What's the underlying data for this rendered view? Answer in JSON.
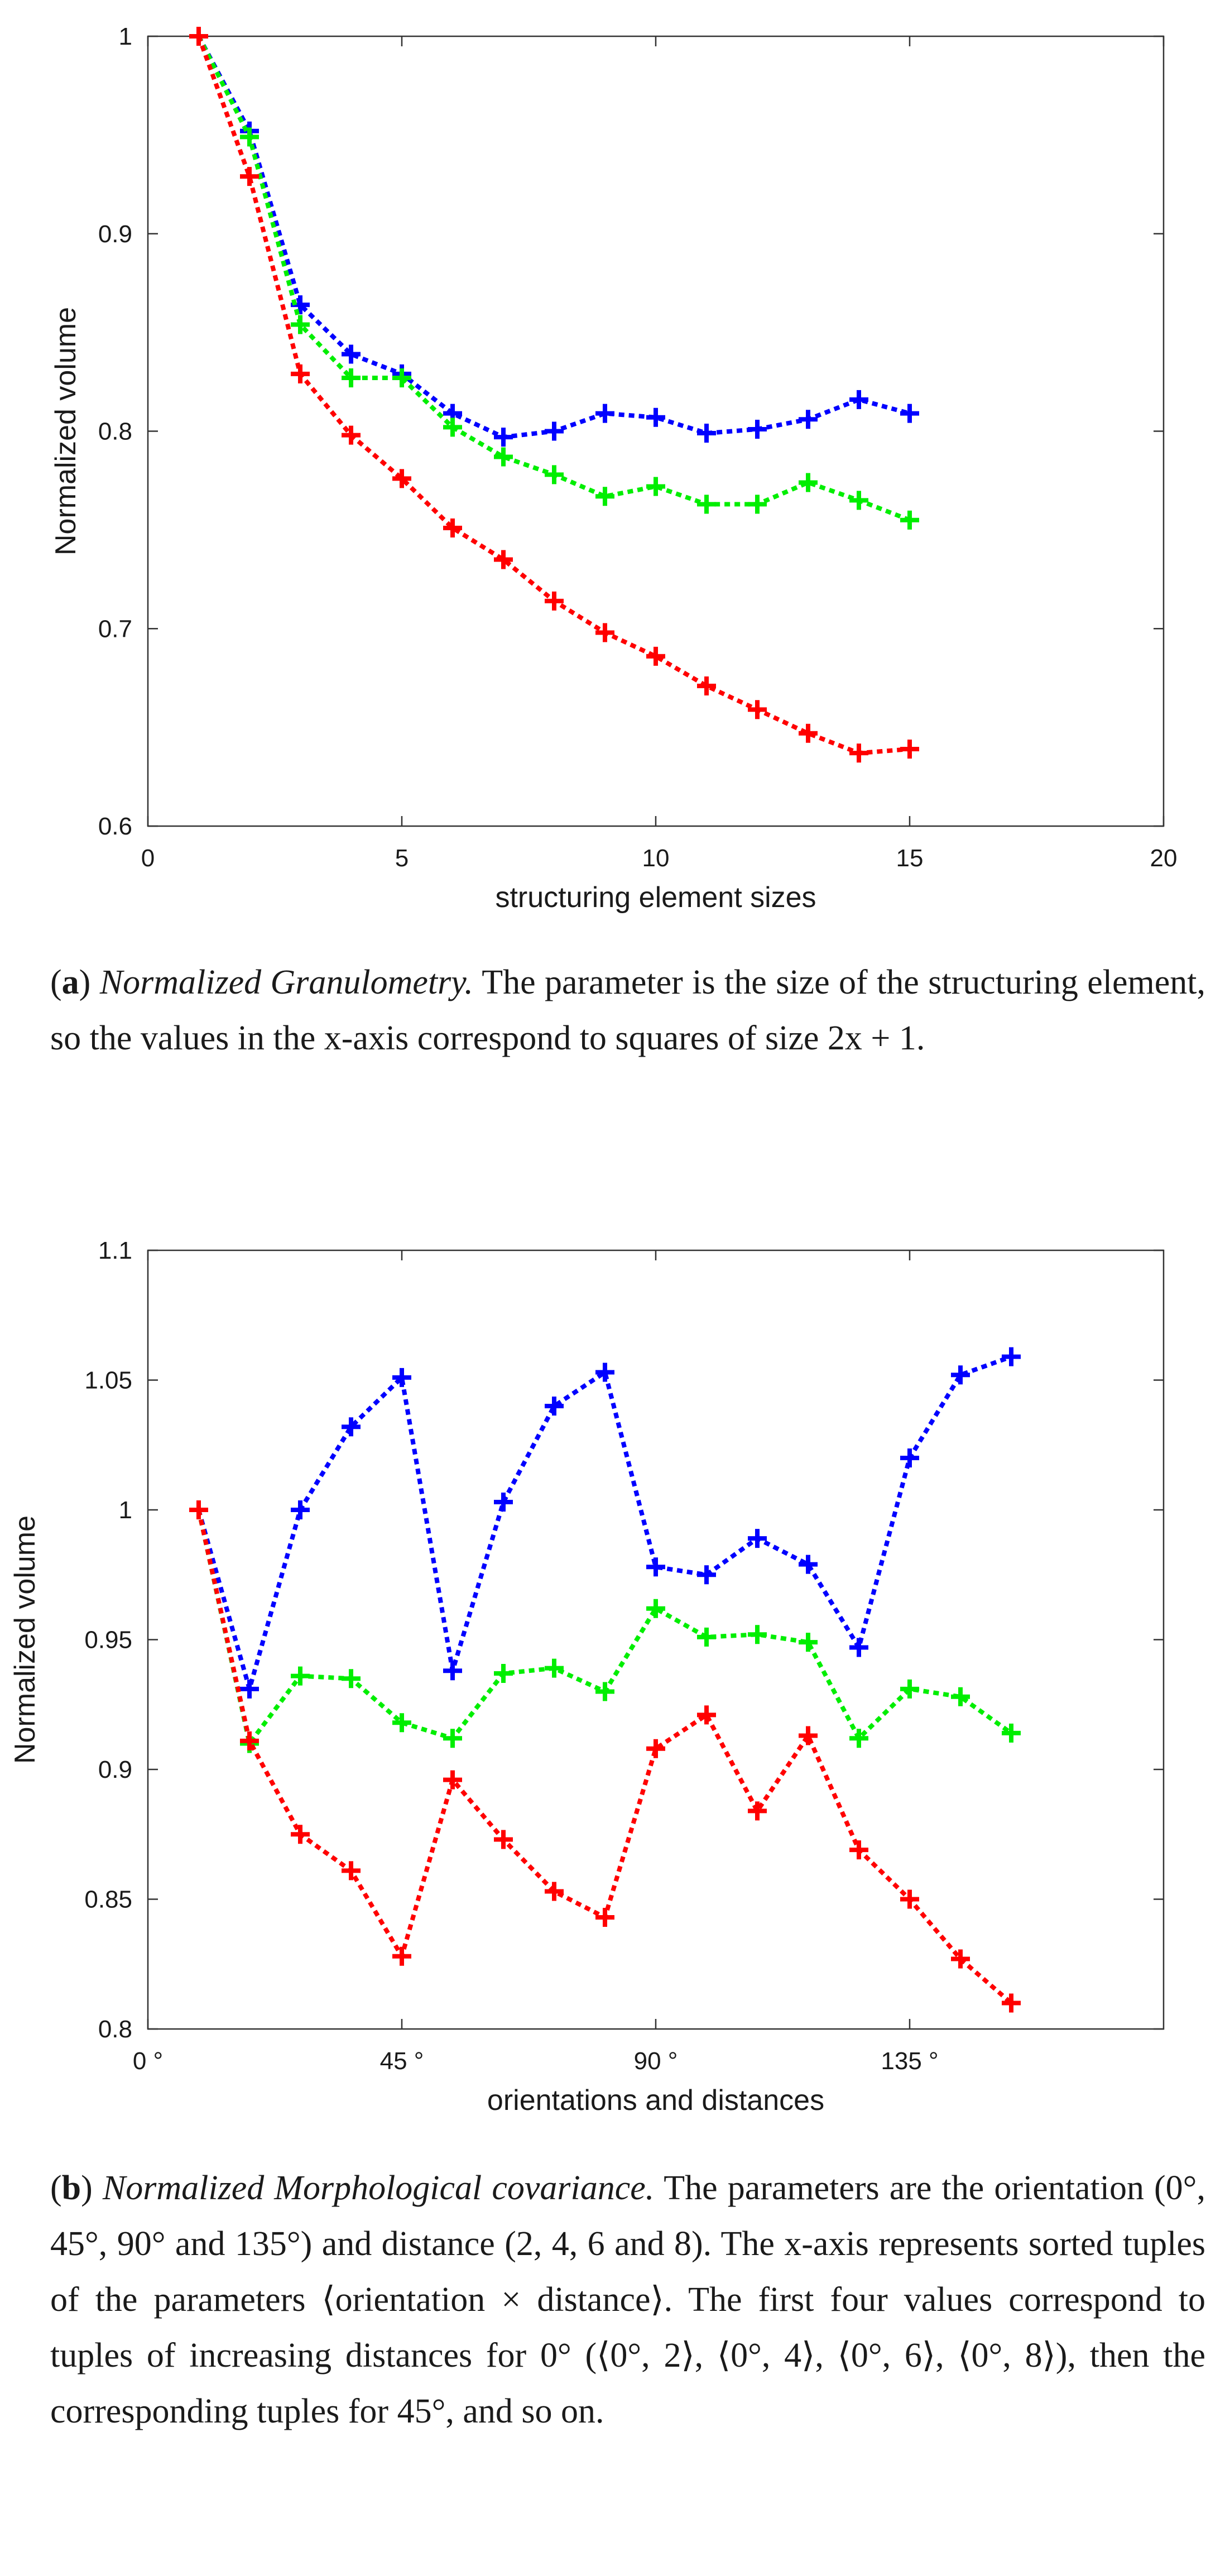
{
  "chart_data": [
    {
      "type": "line",
      "id": "granulometry",
      "title": "",
      "xlabel": "structuring element sizes",
      "ylabel": "Normalized volume",
      "xlim": [
        0,
        20
      ],
      "ylim": [
        0.6,
        1.0
      ],
      "x_ticks": [
        0,
        5,
        10,
        15,
        20
      ],
      "x_tick_labels": [
        "0",
        "5",
        "10",
        "15",
        "20"
      ],
      "y_ticks": [
        0.6,
        0.7,
        0.8,
        0.9,
        1.0
      ],
      "y_tick_labels": [
        "0.6",
        "0.7",
        "0.8",
        "0.9",
        "1"
      ],
      "grid": false,
      "x": [
        1,
        2,
        3,
        4,
        5,
        6,
        7,
        8,
        9,
        10,
        11,
        12,
        13,
        14,
        15
      ],
      "series": [
        {
          "name": "blue",
          "color": "#0000ff",
          "values": [
            1.0,
            0.952,
            0.864,
            0.839,
            0.829,
            0.809,
            0.797,
            0.8,
            0.809,
            0.807,
            0.799,
            0.801,
            0.806,
            0.816,
            0.809
          ]
        },
        {
          "name": "green",
          "color": "#00ee00",
          "values": [
            1.0,
            0.949,
            0.854,
            0.827,
            0.827,
            0.802,
            0.787,
            0.778,
            0.767,
            0.772,
            0.763,
            0.763,
            0.774,
            0.765,
            0.755
          ]
        },
        {
          "name": "red",
          "color": "#ff0000",
          "values": [
            1.0,
            0.929,
            0.829,
            0.798,
            0.776,
            0.751,
            0.735,
            0.714,
            0.698,
            0.686,
            0.671,
            0.659,
            0.647,
            0.637,
            0.639
          ]
        }
      ]
    },
    {
      "type": "line",
      "id": "covariance",
      "title": "",
      "xlabel": "orientations and distances",
      "ylabel": "Normalized volume",
      "xlim": [
        0,
        20
      ],
      "ylim": [
        0.8,
        1.1
      ],
      "x_ticks": [
        0,
        5,
        10,
        15
      ],
      "x_tick_labels": [
        "0 °",
        "45 °",
        "90 °",
        "135 °"
      ],
      "y_ticks": [
        0.8,
        0.85,
        0.9,
        0.95,
        1.0,
        1.05,
        1.1
      ],
      "y_tick_labels": [
        "0.8",
        "0.85",
        "0.9",
        "0.95",
        "1",
        "1.05",
        "1.1"
      ],
      "grid": false,
      "x": [
        1,
        2,
        3,
        4,
        5,
        6,
        7,
        8,
        9,
        10,
        11,
        12,
        13,
        14,
        15,
        16,
        17
      ],
      "series": [
        {
          "name": "blue",
          "color": "#0000ff",
          "values": [
            1.0,
            0.931,
            1.0,
            1.032,
            1.051,
            0.938,
            1.003,
            1.04,
            1.053,
            0.978,
            0.975,
            0.989,
            0.979,
            0.947,
            1.02,
            1.052,
            1.059
          ]
        },
        {
          "name": "green",
          "color": "#00ee00",
          "values": [
            1.0,
            0.91,
            0.936,
            0.935,
            0.918,
            0.912,
            0.937,
            0.939,
            0.93,
            0.962,
            0.951,
            0.952,
            0.949,
            0.912,
            0.931,
            0.928,
            0.914
          ]
        },
        {
          "name": "red",
          "color": "#ff0000",
          "values": [
            1.0,
            0.911,
            0.875,
            0.861,
            0.828,
            0.896,
            0.873,
            0.853,
            0.843,
            0.908,
            0.921,
            0.884,
            0.913,
            0.869,
            0.85,
            0.827,
            0.81
          ]
        }
      ]
    }
  ],
  "captions": {
    "a": {
      "label": "a",
      "title": "Normalized Granulometry.",
      "text": "The parameter is the size of the structuring element, so the values in the x-axis correspond to squares of size 2x + 1."
    },
    "b": {
      "label": "b",
      "title": "Normalized Morphological covariance.",
      "text": "The parameters are the orientation (0°, 45°, 90° and 135°) and distance (2, 4, 6 and 8). The x-axis represents sorted tuples of the parameters ⟨orientation × distance⟩. The first four values correspond to tuples of increasing distances for 0° (⟨0°, 2⟩, ⟨0°, 4⟩, ⟨0°, 6⟩, ⟨0°, 8⟩), then the corresponding tuples for 45°, and so on."
    }
  }
}
